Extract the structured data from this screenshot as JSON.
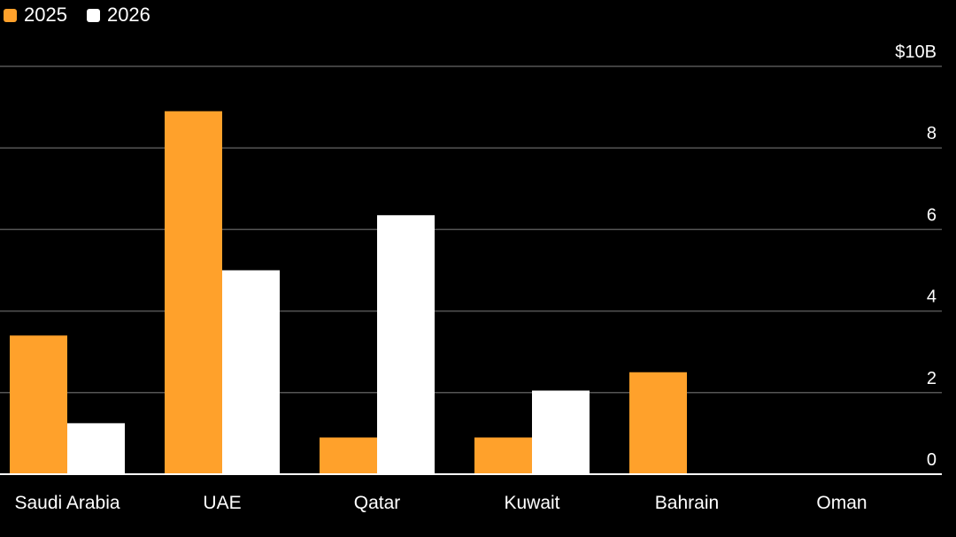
{
  "chart_data": {
    "type": "bar",
    "categories": [
      "Saudi Arabia",
      "UAE",
      "Qatar",
      "Kuwait",
      "Bahrain",
      "Oman"
    ],
    "series": [
      {
        "name": "2025",
        "values": [
          3.4,
          8.9,
          0.9,
          0.9,
          2.5,
          0
        ],
        "color": "#ffa12b"
      },
      {
        "name": "2026",
        "values": [
          1.25,
          5.0,
          6.35,
          2.05,
          0,
          0
        ],
        "color": "#ffffff"
      }
    ],
    "ylim": [
      0,
      10
    ],
    "yticks": [
      {
        "value": 0,
        "label": "0"
      },
      {
        "value": 2,
        "label": "2"
      },
      {
        "value": 4,
        "label": "4"
      },
      {
        "value": 6,
        "label": "6"
      },
      {
        "value": 8,
        "label": "8"
      },
      {
        "value": 10,
        "label": "$10B"
      }
    ],
    "y_axis_side": "right",
    "grid": true,
    "legend_position": "top-left",
    "background_color": "#000000",
    "grid_color": "#555555",
    "axis_color": "#ffffff"
  }
}
